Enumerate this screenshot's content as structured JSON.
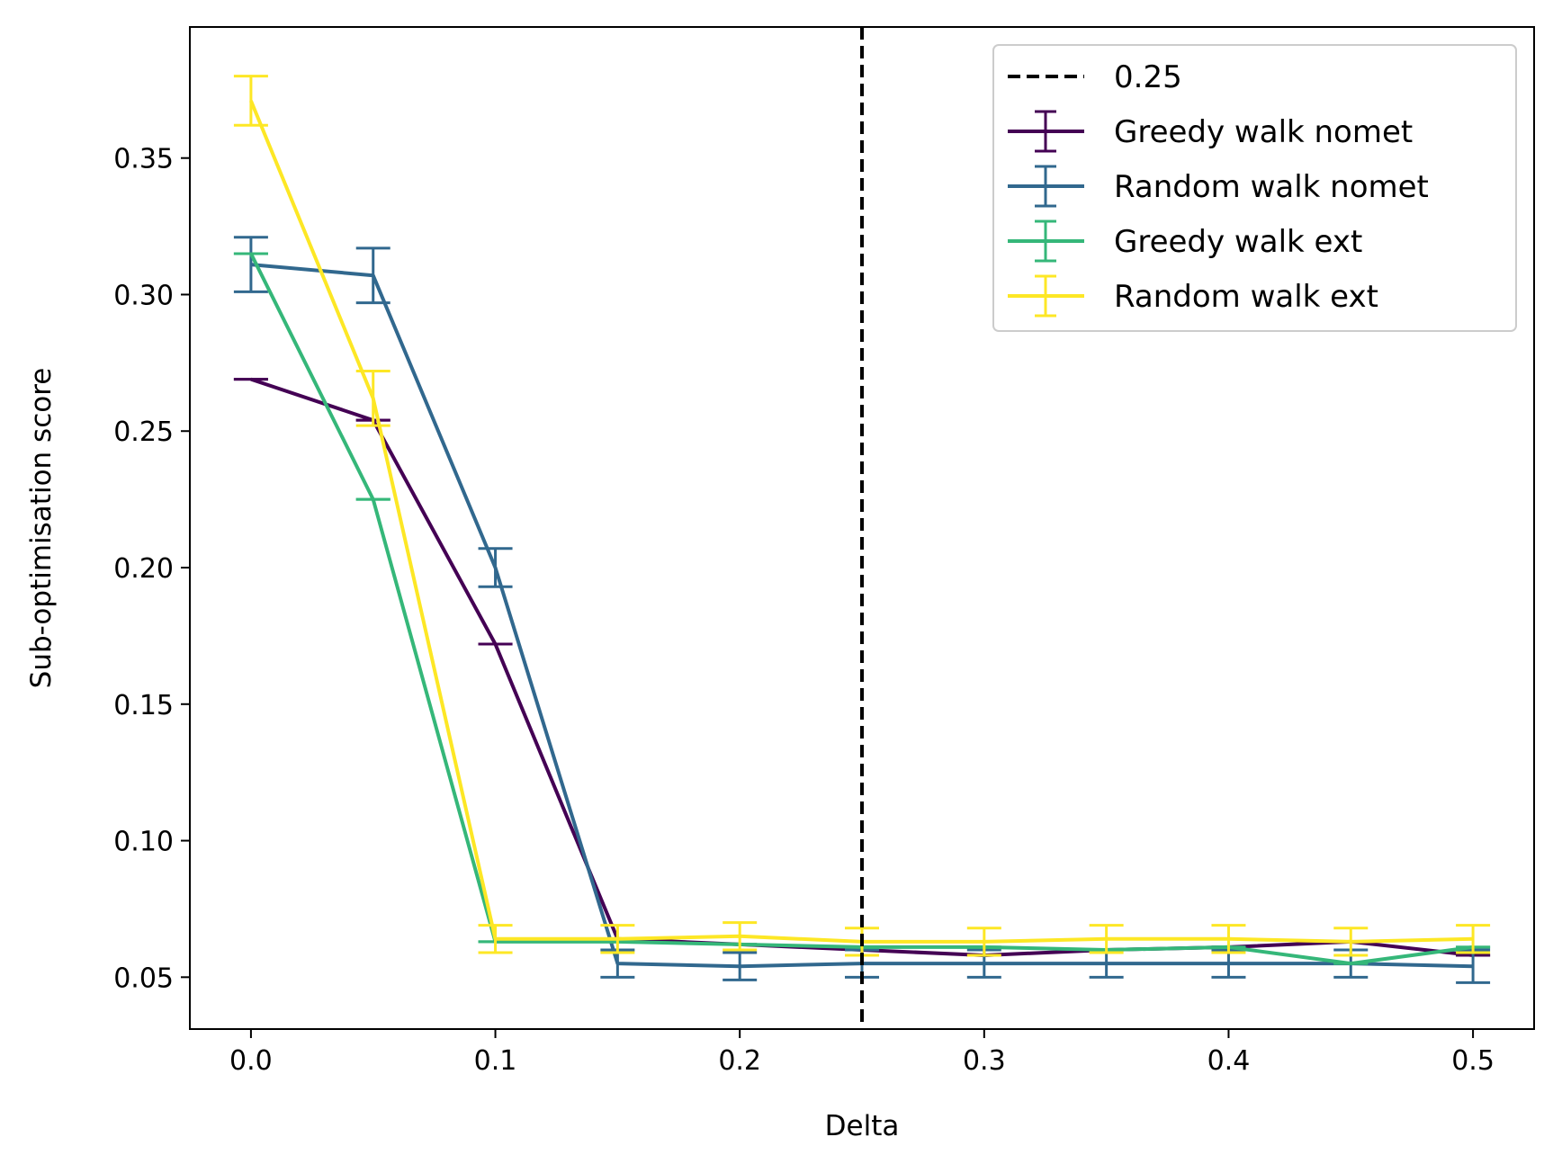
{
  "chart_data": {
    "type": "line",
    "title": "",
    "xlabel": "Delta",
    "ylabel": "Sub-optimisation score",
    "xlim": [
      -0.025,
      0.525
    ],
    "ylim": [
      0.031,
      0.398
    ],
    "xticks": [
      "0.0",
      "0.1",
      "0.2",
      "0.3",
      "0.4",
      "0.5"
    ],
    "xtick_values": [
      0.0,
      0.1,
      0.2,
      0.3,
      0.4,
      0.5
    ],
    "yticks": [
      "0.05",
      "0.10",
      "0.15",
      "0.20",
      "0.25",
      "0.30",
      "0.35"
    ],
    "ytick_values": [
      0.05,
      0.1,
      0.15,
      0.2,
      0.25,
      0.3,
      0.35
    ],
    "grid": false,
    "legend_position": "top-right",
    "x": [
      0.0,
      0.05,
      0.1,
      0.15,
      0.2,
      0.25,
      0.3,
      0.35,
      0.4,
      0.45,
      0.5
    ],
    "reference_line": {
      "name": "0.25",
      "x": 0.25,
      "color": "#000000",
      "style": "dashed"
    },
    "series": [
      {
        "name": "Greedy walk nomet",
        "color": "#440154",
        "values": [
          0.269,
          0.254,
          0.172,
          0.064,
          0.062,
          0.06,
          0.058,
          0.06,
          0.061,
          0.063,
          0.058
        ],
        "errors": [
          0.0,
          0.0,
          0.0,
          0.0,
          0.0,
          0.0,
          0.0,
          0.0,
          0.0,
          0.0,
          0.0
        ]
      },
      {
        "name": "Random walk nomet",
        "color": "#31688e",
        "values": [
          0.311,
          0.307,
          0.2,
          0.055,
          0.054,
          0.055,
          0.055,
          0.055,
          0.055,
          0.055,
          0.054
        ],
        "errors": [
          0.01,
          0.01,
          0.007,
          0.005,
          0.005,
          0.005,
          0.005,
          0.005,
          0.005,
          0.005,
          0.006
        ]
      },
      {
        "name": "Greedy walk ext",
        "color": "#35b779",
        "values": [
          0.315,
          0.225,
          0.063,
          0.063,
          0.062,
          0.061,
          0.061,
          0.06,
          0.061,
          0.055,
          0.061
        ],
        "errors": [
          0.0,
          0.0,
          0.0,
          0.0,
          0.0,
          0.0,
          0.0,
          0.0,
          0.0,
          0.0,
          0.0
        ]
      },
      {
        "name": "Random walk ext",
        "color": "#fde725",
        "values": [
          0.371,
          0.262,
          0.064,
          0.064,
          0.065,
          0.063,
          0.063,
          0.064,
          0.064,
          0.063,
          0.064
        ],
        "errors": [
          0.009,
          0.01,
          0.005,
          0.005,
          0.005,
          0.005,
          0.005,
          0.005,
          0.005,
          0.005,
          0.005
        ]
      }
    ]
  }
}
